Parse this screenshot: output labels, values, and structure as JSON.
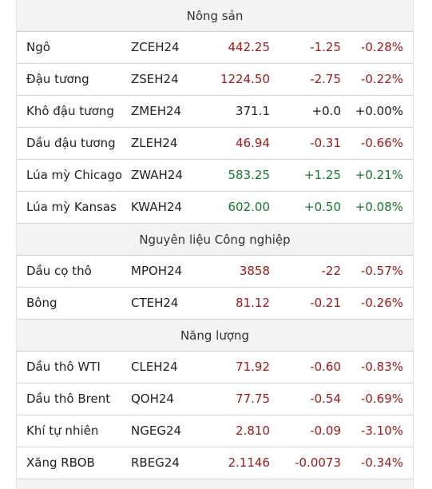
{
  "colors": {
    "negative": "#a01a1a",
    "positive": "#167a2c",
    "neutral": "#222222",
    "header_bg": "#f3f3f3"
  },
  "sections": [
    {
      "title": "Nông sản",
      "rows": [
        {
          "name": "Ngô",
          "symbol": "ZCEH24",
          "price": "442.25",
          "change": "-1.25",
          "percent": "-0.28%",
          "trend": "neg"
        },
        {
          "name": "Đậu tương",
          "symbol": "ZSEH24",
          "price": "1224.50",
          "change": "-2.75",
          "percent": "-0.22%",
          "trend": "neg"
        },
        {
          "name": "Khô đậu tương",
          "symbol": "ZMEH24",
          "price": "371.1",
          "change": "+0.0",
          "percent": "+0.00%",
          "trend": "neu"
        },
        {
          "name": "Dầu đậu tương",
          "symbol": "ZLEH24",
          "price": "46.94",
          "change": "-0.31",
          "percent": "-0.66%",
          "trend": "neg"
        },
        {
          "name": "Lúa mỳ Chicago",
          "symbol": "ZWAH24",
          "price": "583.25",
          "change": "+1.25",
          "percent": "+0.21%",
          "trend": "pos"
        },
        {
          "name": "Lúa mỳ Kansas",
          "symbol": "KWAH24",
          "price": "602.00",
          "change": "+0.50",
          "percent": "+0.08%",
          "trend": "pos"
        }
      ]
    },
    {
      "title": "Nguyên liệu Công nghiệp",
      "rows": [
        {
          "name": "Dầu cọ thô",
          "symbol": "MPOH24",
          "price": "3858",
          "change": "-22",
          "percent": "-0.57%",
          "trend": "neg"
        },
        {
          "name": "Bông",
          "symbol": "CTEH24",
          "price": "81.12",
          "change": "-0.21",
          "percent": "-0.26%",
          "trend": "neg"
        }
      ]
    },
    {
      "title": "Năng lượng",
      "rows": [
        {
          "name": "Dầu thô WTI",
          "symbol": "CLEH24",
          "price": "71.92",
          "change": "-0.60",
          "percent": "-0.83%",
          "trend": "neg"
        },
        {
          "name": "Dầu thô Brent",
          "symbol": "QOH24",
          "price": "77.75",
          "change": "-0.54",
          "percent": "-0.69%",
          "trend": "neg"
        },
        {
          "name": "Khí tự nhiên",
          "symbol": "NGEG24",
          "price": "2.810",
          "change": "-0.09",
          "percent": "-3.10%",
          "trend": "neg"
        },
        {
          "name": "Xăng RBOB",
          "symbol": "RBEG24",
          "price": "2.1146",
          "change": "-0.0073",
          "percent": "-0.34%",
          "trend": "neg"
        }
      ]
    }
  ]
}
